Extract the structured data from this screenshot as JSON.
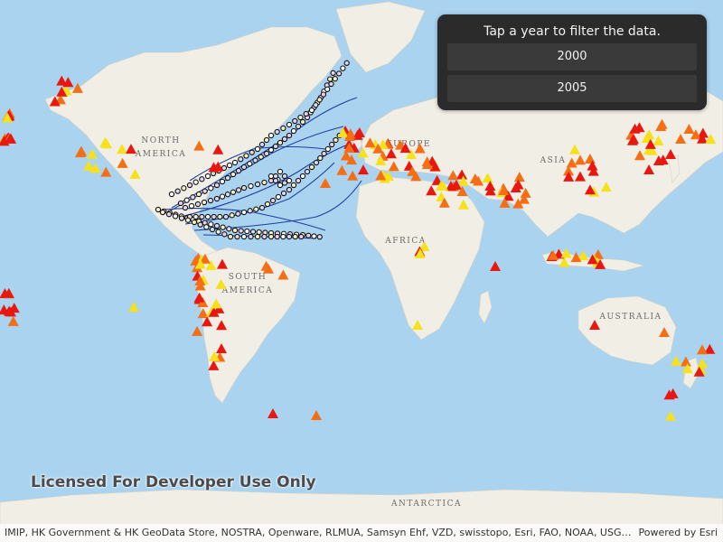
{
  "filter_panel": {
    "title": "Tap a year to filter the data.",
    "years": [
      "2000",
      "2005"
    ]
  },
  "watermark": "Licensed For Developer Use Only",
  "attribution": {
    "text": "IMIP, HK Government & HK GeoData Store, NOSTRA, Openware, RLMUA, Samsyn Ehf, VZD, swisstopo, Esri, FAO, NOAA, USGS, NR...",
    "powered_by": "Powered by Esri"
  },
  "map_labels": {
    "north_america": [
      "NORTH",
      "AMERICA"
    ],
    "south_america": [
      "SOUTH",
      "AMERICA"
    ],
    "europe": "EUROPE",
    "asia": "ASIA",
    "africa": "AFRICA",
    "australia": "AUSTRALIA",
    "antarctica": "ANTARCTICA"
  },
  "colors": {
    "ocean": "#a9d3ef",
    "land": "#f1eee5",
    "quake_red": "#e8170f",
    "quake_orange": "#f46e16",
    "quake_yellow": "#f6e11a",
    "hurricane_track": "#1f3f9e"
  },
  "layers": [
    "earthquakes",
    "hurricane tracks"
  ]
}
